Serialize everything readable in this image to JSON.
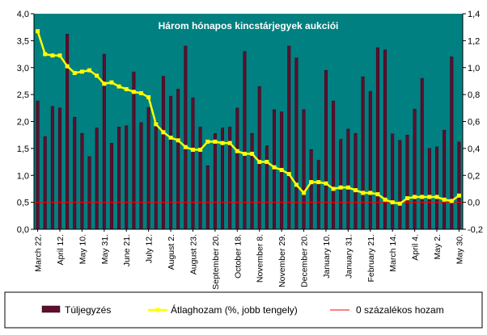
{
  "chart_data": {
    "type": "bar+line",
    "title": "Három hónapos kincstárjegyek aukciói",
    "left_axis": {
      "ylim": [
        0,
        4
      ],
      "ticks": [
        "0,0",
        "0,5",
        "1,0",
        "1,5",
        "2,0",
        "2,5",
        "3,0",
        "3,5",
        "4,0"
      ]
    },
    "right_axis": {
      "ylim": [
        -0.2,
        1.4
      ],
      "ticks": [
        "-0,2",
        "0,0",
        "0,2",
        "0,4",
        "0,6",
        "0,8",
        "1,0",
        "1,2",
        "1,4"
      ]
    },
    "x_tick_labels": [
      "March 22.",
      "April 12.",
      "May 10.",
      "May 31.",
      "June 21.",
      "July 12.",
      "August 2.",
      "August 23.",
      "September 20.",
      "October 18.",
      "November 8.",
      "November 29.",
      "December 20.",
      "January 10.",
      "January 31.",
      "February 21.",
      "March 14.",
      "April 4.",
      "May 2.",
      "May 30."
    ],
    "x_tick_positions": [
      0,
      3,
      6,
      9,
      12,
      15,
      18,
      21,
      24,
      27,
      30,
      33,
      36,
      39,
      42,
      45,
      48,
      51,
      54,
      57
    ],
    "series": [
      {
        "name": "Túljegyzés",
        "axis": "left",
        "kind": "bar",
        "color": "#5c0f2e",
        "values": [
          2.38,
          1.72,
          2.28,
          2.25,
          3.62,
          2.08,
          1.78,
          1.35,
          1.88,
          3.25,
          1.6,
          1.9,
          1.92,
          2.92,
          1.98,
          2.26,
          2.0,
          2.84,
          2.47,
          2.6,
          3.4,
          2.44,
          1.9,
          1.18,
          1.78,
          1.88,
          1.9,
          2.25,
          3.3,
          1.78,
          2.65,
          1.55,
          2.22,
          2.18,
          3.4,
          3.18,
          2.22,
          1.48,
          1.28,
          2.95,
          2.38,
          1.67,
          1.86,
          1.78,
          2.83,
          2.56,
          3.37,
          3.33,
          1.77,
          1.65,
          1.75,
          2.23,
          2.8,
          1.5,
          1.53,
          1.84,
          3.2,
          1.62
        ]
      },
      {
        "name": "Átlaghozam (%, jobb tengely)",
        "axis": "right",
        "kind": "line",
        "color": "#ffff00",
        "values": [
          1.27,
          1.1,
          1.09,
          1.09,
          1.01,
          0.96,
          0.97,
          0.98,
          0.94,
          0.88,
          0.89,
          0.86,
          0.84,
          0.82,
          0.81,
          0.78,
          0.58,
          0.52,
          0.48,
          0.46,
          0.41,
          0.39,
          0.39,
          0.45,
          0.45,
          0.44,
          0.44,
          0.38,
          0.36,
          0.36,
          0.3,
          0.3,
          0.26,
          0.24,
          0.21,
          0.13,
          0.07,
          0.15,
          0.15,
          0.14,
          0.1,
          0.11,
          0.11,
          0.09,
          0.07,
          0.07,
          0.06,
          0.02,
          0.0,
          -0.01,
          0.03,
          0.04,
          0.04,
          0.04,
          0.04,
          0.02,
          0.01,
          0.05
        ]
      },
      {
        "name": "0 százalékos hozam",
        "axis": "right",
        "kind": "reference-line",
        "color": "#ff0000",
        "value": 0
      }
    ],
    "legend_position": "bottom",
    "grid": false
  }
}
